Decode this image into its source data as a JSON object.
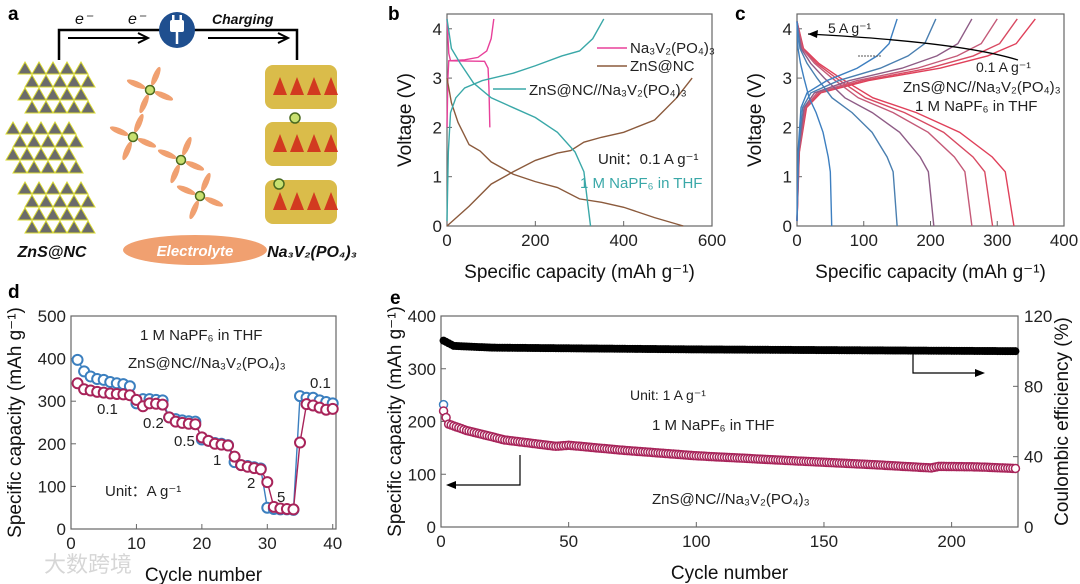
{
  "panels": {
    "a": "a",
    "b": "b",
    "c": "c",
    "d": "d",
    "e": "e"
  },
  "schematic": {
    "electron_1": "e⁻",
    "electron_2": "e⁻",
    "charging": "Charging",
    "anode": "ZnS@NC",
    "electrolyte": "Electrolyte",
    "cathode": "Na₃V₂(PO₄)₃",
    "plug_icon": "power-plug-icon",
    "colors": {
      "plug": "#1f4f8f",
      "electrolyte": "#f0a070",
      "zns": "#6b6b6b",
      "sulfur": "#d8d830",
      "nvp_red": "#d23a20",
      "nvp_yellow": "#d4b02a"
    }
  },
  "watermark": "大数跨境",
  "chart_data": [
    {
      "id": "b",
      "type": "line",
      "xlabel": "Specific capacity (mAh g⁻¹)",
      "ylabel": "Voltage (V)",
      "xlim": [
        0,
        600
      ],
      "ylim": [
        0,
        4.3
      ],
      "xticks": [
        0,
        200,
        400,
        600
      ],
      "yticks": [
        0,
        1,
        2,
        3,
        4
      ],
      "annotations": [
        "Unit：0.1 A g⁻¹",
        "1 M NaPF₆ in THF"
      ],
      "series": [
        {
          "name": "Na₃V₂(PO₄)₃",
          "color": "#e8409a",
          "segments": [
            [
              [
                0,
                2.0
              ],
              [
                2,
                3.0
              ],
              [
                4,
                3.35
              ],
              [
                40,
                3.37
              ],
              [
                70,
                3.42
              ],
              [
                90,
                3.55
              ],
              [
                100,
                3.8
              ],
              [
                106,
                4.2
              ]
            ],
            [
              [
                0,
                4.2
              ],
              [
                4,
                3.5
              ],
              [
                8,
                3.35
              ],
              [
                85,
                3.34
              ],
              [
                93,
                3.2
              ],
              [
                95,
                2.8
              ],
              [
                97,
                2.0
              ]
            ]
          ]
        },
        {
          "name": "ZnS@NC",
          "color": "#8b5a3c",
          "segments": [
            [
              [
                0,
                3.0
              ],
              [
                10,
                2.5
              ],
              [
                25,
                2.1
              ],
              [
                50,
                1.65
              ],
              [
                75,
                1.52
              ],
              [
                100,
                1.3
              ],
              [
                150,
                1.05
              ],
              [
                200,
                0.9
              ],
              [
                250,
                0.78
              ],
              [
                300,
                0.55
              ],
              [
                350,
                0.48
              ],
              [
                400,
                0.38
              ],
              [
                470,
                0.17
              ],
              [
                535,
                0
              ]
            ],
            [
              [
                0,
                0
              ],
              [
                50,
                0.4
              ],
              [
                100,
                0.85
              ],
              [
                150,
                1.1
              ],
              [
                200,
                1.33
              ],
              [
                250,
                1.48
              ],
              [
                280,
                1.53
              ],
              [
                310,
                1.7
              ],
              [
                350,
                1.8
              ],
              [
                400,
                1.9
              ],
              [
                470,
                2.15
              ],
              [
                520,
                2.6
              ],
              [
                555,
                3.0
              ]
            ]
          ]
        },
        {
          "name": "ZnS@NC//Na₃V₂(PO₄)₃",
          "color": "#3aa8a8",
          "segments": [
            [
              [
                0,
                0.1
              ],
              [
                3,
                1.5
              ],
              [
                8,
                2.3
              ],
              [
                20,
                2.6
              ],
              [
                40,
                2.8
              ],
              [
                80,
                2.95
              ],
              [
                150,
                3.1
              ],
              [
                200,
                3.25
              ],
              [
                260,
                3.45
              ],
              [
                300,
                3.55
              ],
              [
                330,
                3.8
              ],
              [
                355,
                4.2
              ]
            ],
            [
              [
                0,
                4.2
              ],
              [
                10,
                3.6
              ],
              [
                30,
                3.3
              ],
              [
                60,
                2.9
              ],
              [
                100,
                2.6
              ],
              [
                150,
                2.4
              ],
              [
                200,
                2.2
              ],
              [
                250,
                1.9
              ],
              [
                290,
                1.5
              ],
              [
                310,
                1.1
              ],
              [
                318,
                0.5
              ],
              [
                325,
                0
              ]
            ]
          ]
        }
      ]
    },
    {
      "id": "c",
      "type": "line",
      "xlabel": "Specific  capacity (mAh g⁻¹)",
      "ylabel": "Voltage (V)",
      "xlim": [
        0,
        400
      ],
      "ylim": [
        0,
        4.3
      ],
      "xticks": [
        0,
        100,
        200,
        300,
        400
      ],
      "yticks": [
        0,
        1,
        2,
        3,
        4
      ],
      "annotations": [
        "5 A g⁻¹",
        "0.1 A g⁻¹",
        "ZnS@NC//Na₃V₂(PO₄)₃",
        "1 M NaPF₆ in THF"
      ],
      "charge_profile": [
        [
          0,
          0.1
        ],
        [
          0.01,
          1.5
        ],
        [
          0.04,
          2.4
        ],
        [
          0.1,
          2.7
        ],
        [
          0.3,
          2.95
        ],
        [
          0.6,
          3.2
        ],
        [
          0.8,
          3.45
        ],
        [
          0.92,
          3.7
        ],
        [
          1,
          4.2
        ]
      ],
      "discharge_profile": [
        [
          0,
          4.15
        ],
        [
          0.03,
          3.6
        ],
        [
          0.1,
          3.3
        ],
        [
          0.2,
          3.0
        ],
        [
          0.35,
          2.6
        ],
        [
          0.55,
          2.3
        ],
        [
          0.75,
          1.9
        ],
        [
          0.9,
          1.4
        ],
        [
          0.96,
          1.1
        ],
        [
          1,
          0
        ]
      ],
      "series": [
        {
          "name": "0.1 A g⁻¹",
          "color": "#e0405a",
          "charge_capacity": 357,
          "discharge_capacity": 325
        },
        {
          "name": "0.2 A g⁻¹",
          "color": "#d84a62",
          "charge_capacity": 330,
          "discharge_capacity": 293
        },
        {
          "name": "0.5 A g⁻¹",
          "color": "#c45a78",
          "charge_capacity": 300,
          "discharge_capacity": 262
        },
        {
          "name": "1 A g⁻¹",
          "color": "#8e5c86",
          "charge_capacity": 262,
          "discharge_capacity": 205
        },
        {
          "name": "2 A g⁻¹",
          "color": "#4a7fb0",
          "charge_capacity": 208,
          "discharge_capacity": 150
        },
        {
          "name": "5 A g⁻¹",
          "color": "#3d7fc0",
          "charge_capacity": 150,
          "discharge_capacity": 52
        }
      ]
    },
    {
      "id": "d",
      "type": "scatter",
      "xlabel": "Cycle number",
      "ylabel": "Specific capacity (mAh g⁻¹)",
      "xlim": [
        0,
        40.5
      ],
      "ylim": [
        0,
        500
      ],
      "xticks": [
        0,
        10,
        20,
        30,
        40
      ],
      "yticks": [
        0,
        100,
        200,
        300,
        400,
        500
      ],
      "annotations": [
        "1 M NaPF₆ in THF",
        "ZnS@NC//Na₃V₂(PO₄)₃",
        "Unit：A g⁻¹"
      ],
      "rate_labels": [
        "0.1",
        "0.2",
        "0.5",
        "1",
        "2",
        "5",
        "0.1"
      ],
      "x": [
        1,
        2,
        3,
        4,
        5,
        6,
        7,
        8,
        9,
        10,
        11,
        12,
        13,
        14,
        15,
        16,
        17,
        18,
        19,
        20,
        21,
        22,
        23,
        24,
        25,
        26,
        27,
        28,
        29,
        30,
        31,
        32,
        33,
        34,
        35,
        36,
        37,
        38,
        39,
        40
      ],
      "series": [
        {
          "name": "Charge",
          "color": "#3b7fbf",
          "values": [
            397,
            370,
            358,
            352,
            350,
            345,
            342,
            340,
            335,
            295,
            305,
            305,
            303,
            302,
            262,
            258,
            255,
            253,
            252,
            210,
            207,
            202,
            200,
            197,
            157,
            150,
            148,
            145,
            142,
            50,
            47,
            46,
            46,
            45,
            312,
            308,
            308,
            302,
            298,
            295
          ]
        },
        {
          "name": "Discharge",
          "color": "#a8245a",
          "values": [
            342,
            328,
            325,
            322,
            320,
            318,
            317,
            316,
            314,
            303,
            288,
            295,
            294,
            292,
            262,
            252,
            249,
            247,
            246,
            215,
            207,
            200,
            198,
            196,
            170,
            150,
            146,
            143,
            140,
            110,
            52,
            48,
            47,
            46,
            203,
            293,
            290,
            285,
            280,
            282
          ]
        }
      ]
    },
    {
      "id": "e",
      "type": "scatter",
      "xlabel": "Cycle number",
      "ylabel": "Specific capacity (mAh g⁻¹)",
      "y2label": "Coulombic efficiency (%)",
      "xlim": [
        0,
        226
      ],
      "ylim": [
        0,
        400
      ],
      "y2lim": [
        0,
        120
      ],
      "xticks": [
        0,
        50,
        100,
        150,
        200
      ],
      "yticks": [
        0,
        100,
        200,
        300,
        400
      ],
      "y2ticks": [
        0,
        40,
        80,
        120
      ],
      "annotations": [
        "Unit: 1 A g⁻¹",
        "1 M NaPF₆ in THF",
        "ZnS@NC//Na₃V₂(PO₄)₃"
      ],
      "cycles": 225,
      "charge_first_cycle": 232,
      "capacity_anchors": [
        [
          1,
          220
        ],
        [
          3,
          195
        ],
        [
          10,
          183
        ],
        [
          25,
          165
        ],
        [
          45,
          153
        ],
        [
          50,
          155
        ],
        [
          70,
          146
        ],
        [
          100,
          135
        ],
        [
          140,
          125
        ],
        [
          170,
          118
        ],
        [
          192,
          112
        ],
        [
          195,
          115
        ],
        [
          210,
          114
        ],
        [
          225,
          111
        ]
      ],
      "ce_anchors": [
        [
          1,
          106
        ],
        [
          5,
          103
        ],
        [
          20,
          102
        ],
        [
          100,
          101
        ],
        [
          225,
          100
        ]
      ],
      "colors": {
        "capacity": "#a8245a",
        "charge": "#3b7fbf",
        "ce": "#000000"
      }
    }
  ]
}
